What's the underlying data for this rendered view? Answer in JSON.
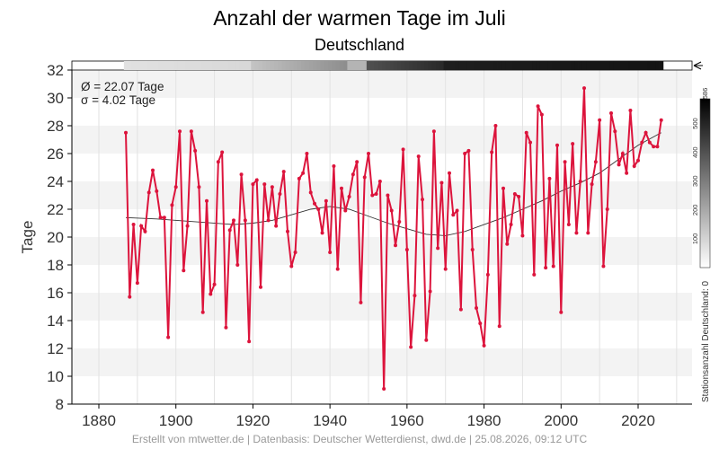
{
  "chart_data": {
    "type": "line",
    "title": "Anzahl der warmen Tage im Juli",
    "subtitle": "Deutschland",
    "ylabel": "Tage",
    "xlabel": "",
    "xlim": [
      1873,
      2034
    ],
    "ylim": [
      8,
      32
    ],
    "x_ticks": [
      1880,
      1900,
      1920,
      1940,
      1960,
      1980,
      2000,
      2020
    ],
    "y_ticks": [
      8,
      10,
      12,
      14,
      16,
      18,
      20,
      22,
      24,
      26,
      28,
      30,
      32
    ],
    "mean_label": "Ø = 22.07 Tage",
    "std_label": "σ = 4.02 Tage",
    "series": [
      {
        "color": "#dc143c",
        "x": [
          1887,
          1888,
          1889,
          1890,
          1891,
          1892,
          1893,
          1894,
          1895,
          1896,
          1897,
          1898,
          1899,
          1900,
          1901,
          1902,
          1903,
          1904,
          1905,
          1906,
          1907,
          1908,
          1909,
          1910,
          1911,
          1912,
          1913,
          1914,
          1915,
          1916,
          1917,
          1918,
          1919,
          1920,
          1921,
          1922,
          1923,
          1924,
          1925,
          1926,
          1927,
          1928,
          1929,
          1930,
          1931,
          1932,
          1933,
          1934,
          1935,
          1936,
          1937,
          1938,
          1939,
          1940,
          1941,
          1942,
          1943,
          1944,
          1945,
          1946,
          1947,
          1948,
          1949,
          1950,
          1951,
          1952,
          1953,
          1954,
          1955,
          1956,
          1957,
          1958,
          1959,
          1960,
          1961,
          1962,
          1963,
          1964,
          1965,
          1966,
          1967,
          1968,
          1969,
          1970,
          1971,
          1972,
          1973,
          1974,
          1975,
          1976,
          1977,
          1978,
          1979,
          1980,
          1981,
          1982,
          1983,
          1984,
          1985,
          1986,
          1987,
          1988,
          1989,
          1990,
          1991,
          1992,
          1993,
          1994,
          1995,
          1996,
          1997,
          1998,
          1999,
          2000,
          2001,
          2002,
          2003,
          2004,
          2005,
          2006,
          2007,
          2008,
          2009,
          2010,
          2011,
          2012,
          2013,
          2014,
          2015,
          2016,
          2017,
          2018,
          2019,
          2020,
          2021,
          2022,
          2023,
          2024,
          2025,
          2026
        ],
        "y": [
          27.5,
          15.7,
          20.9,
          16.7,
          20.8,
          20.4,
          23.2,
          24.8,
          23.3,
          21.4,
          21.4,
          12.8,
          22.3,
          23.6,
          27.6,
          17.6,
          20.8,
          27.6,
          26.2,
          23.6,
          14.6,
          22.6,
          15.9,
          16.6,
          25.4,
          26.1,
          13.5,
          20.5,
          21.2,
          18.0,
          24.5,
          21.2,
          12.5,
          23.8,
          24.1,
          16.4,
          23.8,
          21.2,
          23.6,
          20.8,
          23.1,
          24.7,
          20.4,
          17.9,
          18.9,
          24.2,
          24.6,
          26.0,
          23.2,
          22.4,
          22.0,
          20.3,
          22.6,
          18.9,
          25.1,
          17.7,
          23.5,
          21.9,
          22.9,
          24.5,
          25.4,
          15.3,
          24.3,
          26.0,
          23.0,
          23.1,
          24.0,
          9.1,
          23.0,
          21.9,
          19.4,
          21.1,
          26.3,
          19.1,
          12.1,
          15.8,
          25.8,
          22.7,
          12.6,
          16.1,
          27.6,
          19.2,
          23.9,
          17.7,
          24.6,
          21.6,
          21.9,
          14.8,
          26.0,
          26.2,
          19.1,
          14.9,
          13.8,
          12.2,
          17.3,
          26.1,
          28.0,
          13.6,
          23.5,
          19.5,
          20.9,
          23.1,
          22.9,
          20.1,
          27.5,
          26.8,
          17.3,
          29.4,
          28.8,
          17.8,
          24.2,
          17.9,
          26.6,
          14.6,
          25.4,
          20.9,
          26.7,
          20.3,
          24.0,
          30.7,
          20.3,
          23.8,
          25.4,
          28.4,
          17.9,
          22.0,
          28.9,
          27.6,
          25.2,
          26.0,
          24.6,
          29.1,
          25.1,
          25.5,
          26.8,
          27.5,
          26.8,
          26.5,
          26.5,
          28.4
        ]
      },
      {
        "color": "#333333",
        "x": [
          1887,
          1895,
          1905,
          1915,
          1920,
          1925,
          1930,
          1935,
          1940,
          1945,
          1950,
          1955,
          1960,
          1965,
          1970,
          1975,
          1980,
          1985,
          1990,
          1995,
          2000,
          2005,
          2010,
          2015,
          2020,
          2026
        ],
        "y": [
          21.4,
          21.3,
          21.1,
          20.9,
          21.0,
          21.2,
          21.6,
          22.0,
          22.2,
          22.0,
          21.5,
          21.0,
          20.6,
          20.2,
          20.1,
          20.4,
          20.9,
          21.4,
          22.0,
          22.6,
          23.3,
          23.9,
          24.6,
          25.6,
          26.6,
          27.5
        ]
      }
    ],
    "station_colorbar": {
      "label": "Stationsanzahl Deutschland: 0",
      "max_label": "586",
      "ticks": [
        "100",
        "200",
        "300",
        "400",
        "500"
      ],
      "range": [
        0,
        586
      ]
    }
  },
  "footer": "Erstellt von mtwetter.de | Datenbasis: Deutscher Wetterdienst, dwd.de | 25.08.2026, 09:12 UTC"
}
